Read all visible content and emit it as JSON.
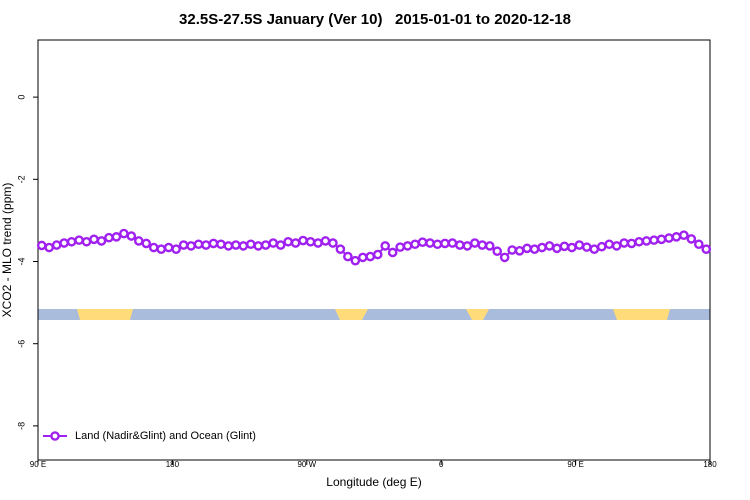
{
  "chart_data": {
    "type": "line",
    "title": "32.5S-27.5S January (Ver 10)   2015-01-01 to 2020-12-18",
    "x_label": "Longitude (deg E)",
    "y_label": "XCO2 - MLO trend (ppm)",
    "xlim": [
      90,
      540
    ],
    "xticks": [
      {
        "value": 90,
        "label": "90 E"
      },
      180,
      {
        "value": 270,
        "label": "90 W"
      },
      {
        "value": 360,
        "label": "0"
      },
      {
        "value": 450,
        "label": "90 E"
      },
      {
        "value": 540,
        "label": "180"
      }
    ],
    "ylim": [
      -8.83,
      1.39
    ],
    "yticks": [
      0,
      -2,
      -4,
      -6,
      -8
    ],
    "legend": "bottom-left",
    "x": [
      92.5,
      97.5,
      102.5,
      107.5,
      112.5,
      117.5,
      122.5,
      127.5,
      132.5,
      137.5,
      142.5,
      147.5,
      152.5,
      157.5,
      162.5,
      167.5,
      172.5,
      177.5,
      182.5,
      187.5,
      192.5,
      197.5,
      202.5,
      207.5,
      212.5,
      217.5,
      222.5,
      227.5,
      232.5,
      237.5,
      242.5,
      247.5,
      252.5,
      257.5,
      262.5,
      267.5,
      272.5,
      277.5,
      282.5,
      287.5,
      292.5,
      297.5,
      302.5,
      307.5,
      312.5,
      317.5,
      322.5,
      327.5,
      332.5,
      337.5,
      342.5,
      347.5,
      352.5,
      357.5,
      362.5,
      367.5,
      372.5,
      377.5,
      382.5,
      387.5,
      392.5,
      397.5,
      402.5,
      407.5,
      412.5,
      417.5,
      422.5,
      427.5,
      432.5,
      437.5,
      442.5,
      447.5,
      452.5,
      457.5,
      462.5,
      467.5,
      472.5,
      477.5,
      482.5,
      487.5,
      492.5,
      497.5,
      502.5,
      507.5,
      512.5,
      517.5,
      522.5,
      527.5,
      532.5,
      537.5
    ],
    "series": [
      {
        "name": "Land (Nadir&Glint) and Ocean (Glint)",
        "color": "#a020f0",
        "values": [
          -3.61,
          -3.66,
          -3.6,
          -3.55,
          -3.52,
          -3.48,
          -3.52,
          -3.46,
          -3.5,
          -3.42,
          -3.4,
          -3.32,
          -3.38,
          -3.5,
          -3.56,
          -3.66,
          -3.7,
          -3.66,
          -3.7,
          -3.6,
          -3.62,
          -3.58,
          -3.6,
          -3.56,
          -3.58,
          -3.62,
          -3.6,
          -3.62,
          -3.58,
          -3.62,
          -3.6,
          -3.55,
          -3.6,
          -3.52,
          -3.55,
          -3.49,
          -3.52,
          -3.55,
          -3.5,
          -3.55,
          -3.7,
          -3.88,
          -3.98,
          -3.9,
          -3.88,
          -3.83,
          -3.62,
          -3.78,
          -3.65,
          -3.62,
          -3.58,
          -3.53,
          -3.55,
          -3.58,
          -3.56,
          -3.55,
          -3.6,
          -3.62,
          -3.55,
          -3.6,
          -3.62,
          -3.75,
          -3.9,
          -3.72,
          -3.74,
          -3.68,
          -3.7,
          -3.66,
          -3.62,
          -3.68,
          -3.63,
          -3.66,
          -3.6,
          -3.65,
          -3.7,
          -3.64,
          -3.58,
          -3.62,
          -3.55,
          -3.56,
          -3.52,
          -3.5,
          -3.48,
          -3.46,
          -3.43,
          -3.4,
          -3.36,
          -3.45,
          -3.58,
          -3.7
        ]
      }
    ]
  }
}
